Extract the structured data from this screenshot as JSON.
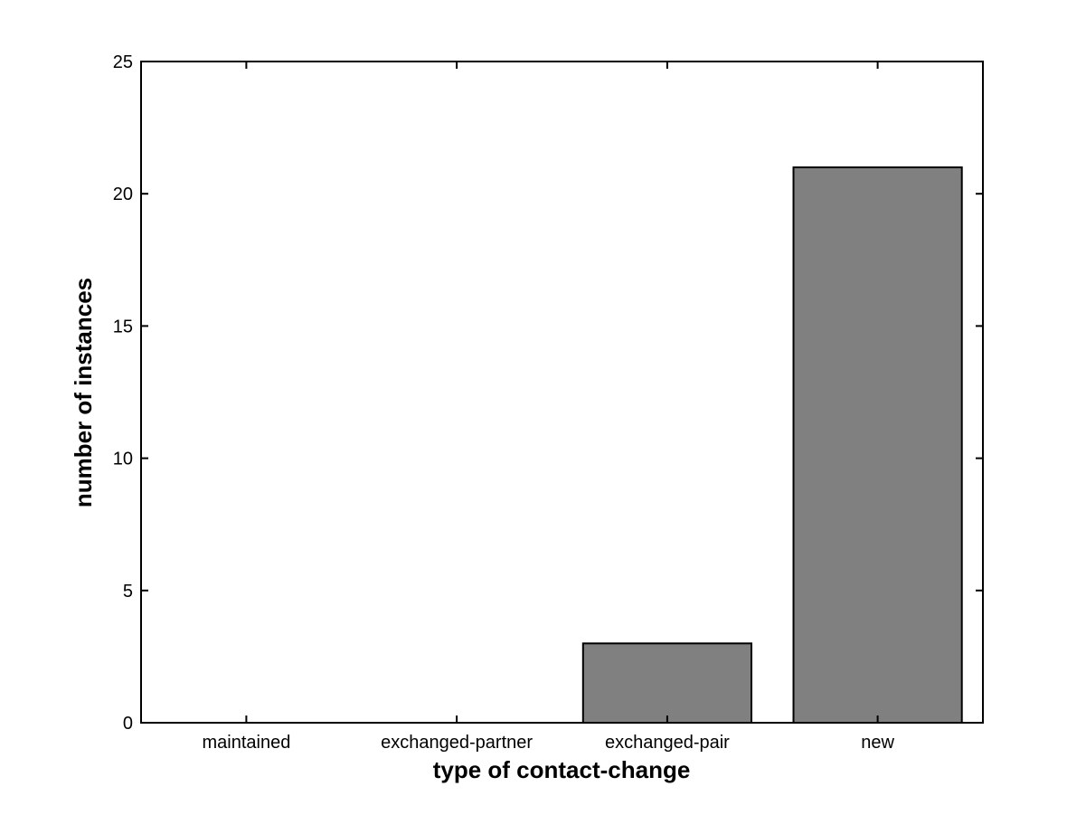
{
  "chart_data": {
    "type": "bar",
    "title": "",
    "categories": [
      "maintained",
      "exchanged-partner",
      "exchanged-pair",
      "new"
    ],
    "values": [
      0,
      0,
      3,
      21
    ],
    "xlabel": "type of contact-change",
    "ylabel": "number of instances",
    "ylim": [
      0,
      25
    ],
    "yticks": [
      0,
      5,
      10,
      15,
      20,
      25
    ],
    "bar_color": "#808080",
    "bar_edge_color": "#000000",
    "axis_color": "#000000",
    "background_color": "#ffffff",
    "grid": false,
    "legend": null,
    "bar_width_fraction": 0.8
  }
}
